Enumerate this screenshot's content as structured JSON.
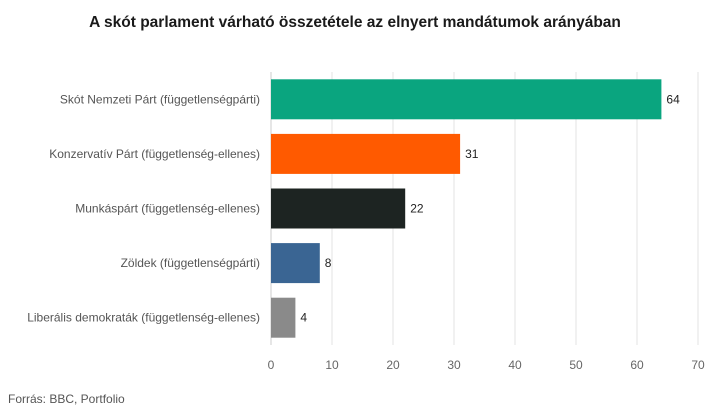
{
  "chart_data": {
    "type": "bar",
    "orientation": "horizontal",
    "title": "A skót parlament várható összetétele az elnyert mandátumok arányában",
    "categories": [
      "Skót Nemzeti Párt (függetlenségpárti)",
      "Konzervatív Párt (függetlenség-ellenes)",
      "Munkáspárt (függetlenség-ellenes)",
      "Zöldek (függetlenségpárti)",
      "Liberális demokraták (függetlenség-ellenes)"
    ],
    "values": [
      64,
      31,
      22,
      8,
      4
    ],
    "colors": [
      "#0aa57f",
      "#ff5a00",
      "#1d2422",
      "#3a6593",
      "#8a8a8a"
    ],
    "xlim": [
      0,
      70
    ],
    "xticks": [
      0,
      10,
      20,
      30,
      40,
      50,
      60,
      70
    ],
    "grid": true,
    "data_labels": [
      "64",
      "31",
      "22",
      "8",
      "4"
    ]
  },
  "source": "Forrás:  BBC, Portfolio"
}
